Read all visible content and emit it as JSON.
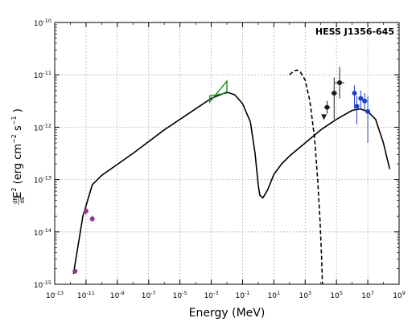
{
  "chart_data": {
    "type": "scatter",
    "title": "HESS J1356-645",
    "xlabel": "Energy (MeV)",
    "ylabel": {
      "prefix": "E",
      "sup": "2",
      "frac_num": "dN",
      "frac_den": "dE",
      "open": "(erg cm",
      "exp1": "−2",
      "mid": " s",
      "exp2": "−1",
      "close": " )"
    },
    "x_scale": "log",
    "y_scale": "log",
    "xlim_log10": [
      -13,
      9
    ],
    "ylim_log10": [
      -15,
      -10
    ],
    "grid": true,
    "x_ticks": [
      {
        "e": -13,
        "base": "10",
        "exp": "-13"
      },
      {
        "e": -11,
        "base": "10",
        "exp": "-11"
      },
      {
        "e": -9,
        "base": "10",
        "exp": "-9"
      },
      {
        "e": -7,
        "base": "10",
        "exp": "-7"
      },
      {
        "e": -5,
        "base": "10",
        "exp": "-5"
      },
      {
        "e": -3,
        "base": "10",
        "exp": "-3"
      },
      {
        "e": -1,
        "base": "10",
        "exp": "-1"
      },
      {
        "e": 1,
        "base": "10",
        "exp": "1"
      },
      {
        "e": 3,
        "base": "10",
        "exp": "3"
      },
      {
        "e": 5,
        "base": "10",
        "exp": "5"
      },
      {
        "e": 7,
        "base": "10",
        "exp": "7"
      },
      {
        "e": 9,
        "base": "10",
        "exp": "9"
      }
    ],
    "y_ticks": [
      {
        "e": -15,
        "base": "10",
        "exp": "-15"
      },
      {
        "e": -14,
        "base": "10",
        "exp": "-14"
      },
      {
        "e": -13,
        "base": "10",
        "exp": "-13"
      },
      {
        "e": -12,
        "base": "10",
        "exp": "-12"
      },
      {
        "e": -11,
        "base": "10",
        "exp": "-11"
      },
      {
        "e": -10,
        "base": "10",
        "exp": "-10"
      }
    ],
    "curves": [
      {
        "id": "solid-model",
        "color": "#000000",
        "dash": false,
        "points_log10": [
          [
            -11.8,
            -14.8
          ],
          [
            -11.2,
            -13.7
          ],
          [
            -10.6,
            -13.1
          ],
          [
            -10.0,
            -12.92
          ],
          [
            -8.0,
            -12.5
          ],
          [
            -6.0,
            -12.05
          ],
          [
            -4.0,
            -11.65
          ],
          [
            -3.0,
            -11.45
          ],
          [
            -2.0,
            -11.33
          ],
          [
            -1.5,
            -11.38
          ],
          [
            -1.0,
            -11.55
          ],
          [
            -0.5,
            -11.9
          ],
          [
            -0.2,
            -12.5
          ],
          [
            0.0,
            -13.1
          ],
          [
            0.1,
            -13.3
          ],
          [
            0.3,
            -13.35
          ],
          [
            0.6,
            -13.2
          ],
          [
            1.0,
            -12.9
          ],
          [
            1.5,
            -12.7
          ],
          [
            2.0,
            -12.55
          ],
          [
            3.0,
            -12.3
          ],
          [
            4.0,
            -12.05
          ],
          [
            5.0,
            -11.85
          ],
          [
            6.0,
            -11.68
          ],
          [
            6.5,
            -11.65
          ],
          [
            7.0,
            -11.7
          ],
          [
            7.5,
            -11.85
          ],
          [
            8.0,
            -12.3
          ],
          [
            8.4,
            -12.8
          ]
        ]
      },
      {
        "id": "dashed-model",
        "color": "#000000",
        "dash": true,
        "points_log10": [
          [
            2.0,
            -11.0
          ],
          [
            2.3,
            -10.92
          ],
          [
            2.5,
            -10.91
          ],
          [
            2.7,
            -10.95
          ],
          [
            3.0,
            -11.1
          ],
          [
            3.3,
            -11.5
          ],
          [
            3.6,
            -12.2
          ],
          [
            3.8,
            -13.0
          ],
          [
            3.95,
            -13.8
          ],
          [
            4.05,
            -14.5
          ],
          [
            4.1,
            -15.0
          ]
        ]
      }
    ],
    "bowtie": {
      "color": "#228b22",
      "outline_log10": [
        [
          -3.1,
          -11.52
        ],
        [
          -2.0,
          -11.12
        ],
        [
          -2.0,
          -11.35
        ],
        [
          -3.1,
          -11.4
        ]
      ]
    },
    "series": [
      {
        "id": "purple",
        "color": "#8b3a8b",
        "marker": "circle",
        "points_log10": [
          {
            "x": -11.7,
            "y": -14.75,
            "yerr": [
              0.04,
              0.04
            ]
          },
          {
            "x": -11.0,
            "y": -13.6,
            "yerr": [
              0.08,
              0.08
            ]
          },
          {
            "x": -10.6,
            "y": -13.75,
            "yerr": [
              0.06,
              0.06
            ]
          }
        ]
      },
      {
        "id": "black",
        "color": "#1a1a1a",
        "marker": "circle",
        "points_log10": [
          {
            "x": 4.4,
            "y": -11.62,
            "yerr": [
              0.12,
              0.12
            ],
            "xerr": [
              0.2,
              0.2
            ]
          },
          {
            "x": 4.85,
            "y": -11.35,
            "yerr": [
              0.5,
              0.3
            ],
            "xerr": [
              0.2,
              0.2
            ]
          },
          {
            "x": 5.2,
            "y": -11.15,
            "yerr": [
              0.3,
              0.3
            ],
            "xerr": [
              0.3,
              0.3
            ]
          }
        ],
        "upper_limits_log10": [
          {
            "x": 4.2,
            "y": -11.8
          }
        ]
      },
      {
        "id": "blue",
        "color": "#2040c0",
        "marker": "circle",
        "points_log10": [
          {
            "x": 6.15,
            "y": -11.35,
            "yerr": [
              0.3,
              0.15
            ],
            "xerr": [
              0.15,
              0.15
            ]
          },
          {
            "x": 6.3,
            "y": -11.6,
            "yerr": [
              0.35,
              0.2
            ],
            "xerr": [
              0.12,
              0.12
            ]
          },
          {
            "x": 6.55,
            "y": -11.45,
            "yerr": [
              0.2,
              0.15
            ],
            "xerr": [
              0.15,
              0.15
            ]
          },
          {
            "x": 6.8,
            "y": -11.5,
            "yerr": [
              0.2,
              0.15
            ],
            "xerr": [
              0.15,
              0.15
            ]
          },
          {
            "x": 7.0,
            "y": -11.7,
            "yerr": [
              0.6,
              0.3
            ],
            "xerr": [
              0.15,
              0.15
            ]
          }
        ]
      }
    ]
  }
}
